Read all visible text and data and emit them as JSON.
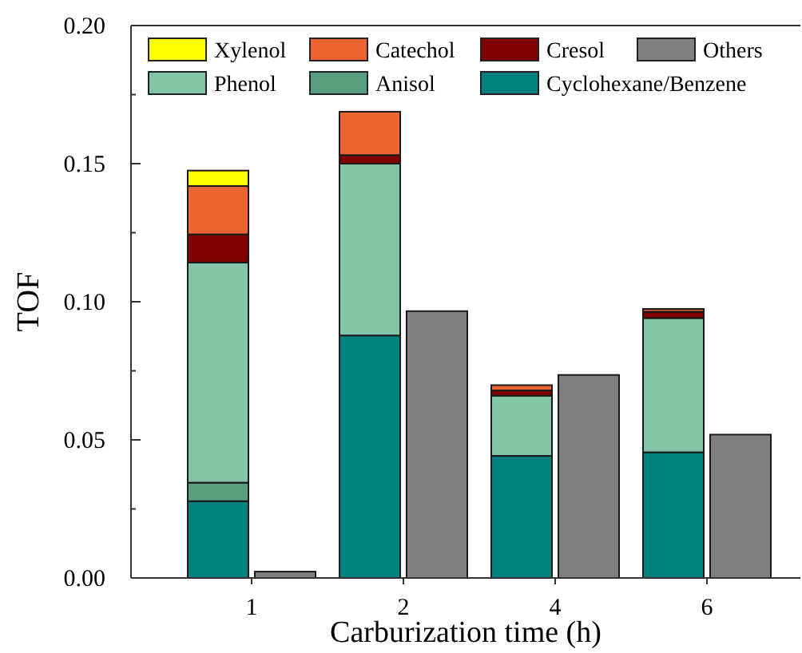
{
  "chart_data": [
    {
      "type": "bar",
      "stacked": true,
      "xlabel": "Carburization time (h)",
      "ylabel": "TOF",
      "categories": [
        "1",
        "2",
        "4",
        "6"
      ],
      "ylim": [
        0,
        0.2
      ],
      "yticks": [
        {
          "value": 0,
          "label": "0.00"
        },
        {
          "value": 0.025,
          "label": null
        },
        {
          "value": 0.05,
          "label": "0.05"
        },
        {
          "value": 0.075,
          "label": null
        },
        {
          "value": 0.1,
          "label": "0.10"
        },
        {
          "value": 0.125,
          "label": null
        },
        {
          "value": 0.15,
          "label": "0.15"
        },
        {
          "value": 0.175,
          "label": null
        },
        {
          "value": 0.2,
          "label": "0.20"
        }
      ],
      "legend": "top",
      "series": [
        {
          "name": "Cyclohexane/Benzene",
          "color": "#008080",
          "values": [
            0.0278,
            0.0878,
            0.0442,
            0.0455
          ]
        },
        {
          "name": "Anisol",
          "color": "#5a9e80",
          "values": [
            0.0067,
            0,
            0,
            0
          ]
        },
        {
          "name": "Phenol",
          "color": "#84c5a8",
          "values": [
            0.0797,
            0.0622,
            0.0218,
            0.0486
          ]
        },
        {
          "name": "Cresol",
          "color": "#800000",
          "values": [
            0.0102,
            0.0031,
            0.0019,
            0.0023
          ]
        },
        {
          "name": "Catechol",
          "color": "#ec6431",
          "values": [
            0.0175,
            0.0157,
            0.0019,
            0.001
          ]
        },
        {
          "name": "Xylenol",
          "color": "#ffff00",
          "values": [
            0.0056,
            0,
            0,
            0
          ]
        }
      ]
    },
    {
      "type": "bar",
      "categories": [
        "1",
        "2",
        "4",
        "6"
      ],
      "ylim": [
        0,
        0.2
      ],
      "tick_labels": false,
      "legend": "top",
      "series": [
        {
          "name": "Others",
          "color": "#808080",
          "values": [
            0.0023,
            0.0966,
            0.0735,
            0.0519
          ]
        }
      ]
    }
  ]
}
